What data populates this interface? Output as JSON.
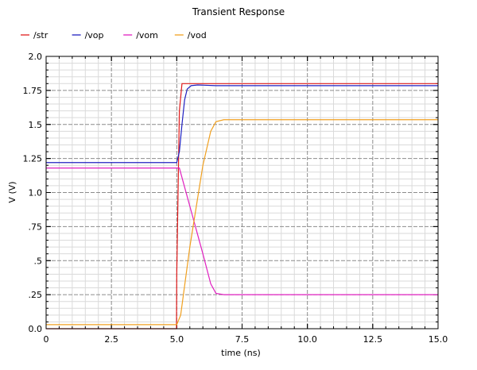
{
  "chart_data": {
    "type": "line",
    "title": "Transient Response",
    "xlabel": "time (ns)",
    "ylabel": "V (V)",
    "xlim": [
      0,
      15
    ],
    "ylim": [
      0,
      2.0
    ],
    "grid": true,
    "legend_position": "top-left",
    "x_ticks": [
      0,
      2.5,
      5.0,
      7.5,
      10.0,
      12.5,
      15.0
    ],
    "x_tick_labels": [
      "0",
      "2.5",
      "5.0",
      "7.5",
      "10.0",
      "12.5",
      "15.0"
    ],
    "y_ticks": [
      0,
      0.25,
      0.5,
      0.75,
      1.0,
      1.25,
      1.5,
      1.75,
      2.0
    ],
    "y_tick_labels": [
      "0.0",
      ".25",
      ".5",
      ".75",
      "1.0",
      "1.25",
      "1.5",
      "1.75",
      "2.0"
    ],
    "series": [
      {
        "name": "/str",
        "color": "#e01c1c",
        "x": [
          0,
          4.99,
          5.0,
          5.1,
          5.2,
          5.3,
          15
        ],
        "y": [
          0,
          0,
          0.4,
          1.6,
          1.8,
          1.8,
          1.8
        ]
      },
      {
        "name": "/vop",
        "color": "#2020c0",
        "x": [
          0,
          5.0,
          5.1,
          5.2,
          5.3,
          5.4,
          5.55,
          5.8,
          6.5,
          15
        ],
        "y": [
          1.22,
          1.22,
          1.3,
          1.5,
          1.68,
          1.76,
          1.785,
          1.79,
          1.785,
          1.785
        ]
      },
      {
        "name": "/vom",
        "color": "#e020c0",
        "x": [
          0,
          5.0,
          5.1,
          5.5,
          6.0,
          6.3,
          6.5,
          6.8,
          15
        ],
        "y": [
          1.18,
          1.18,
          1.18,
          0.9,
          0.55,
          0.33,
          0.26,
          0.25,
          0.25
        ]
      },
      {
        "name": "/vod",
        "color": "#f0a020",
        "x": [
          0,
          5.0,
          5.15,
          5.5,
          6.0,
          6.3,
          6.5,
          6.8,
          15
        ],
        "y": [
          0.03,
          0.03,
          0.1,
          0.6,
          1.2,
          1.45,
          1.52,
          1.535,
          1.535
        ]
      }
    ]
  }
}
